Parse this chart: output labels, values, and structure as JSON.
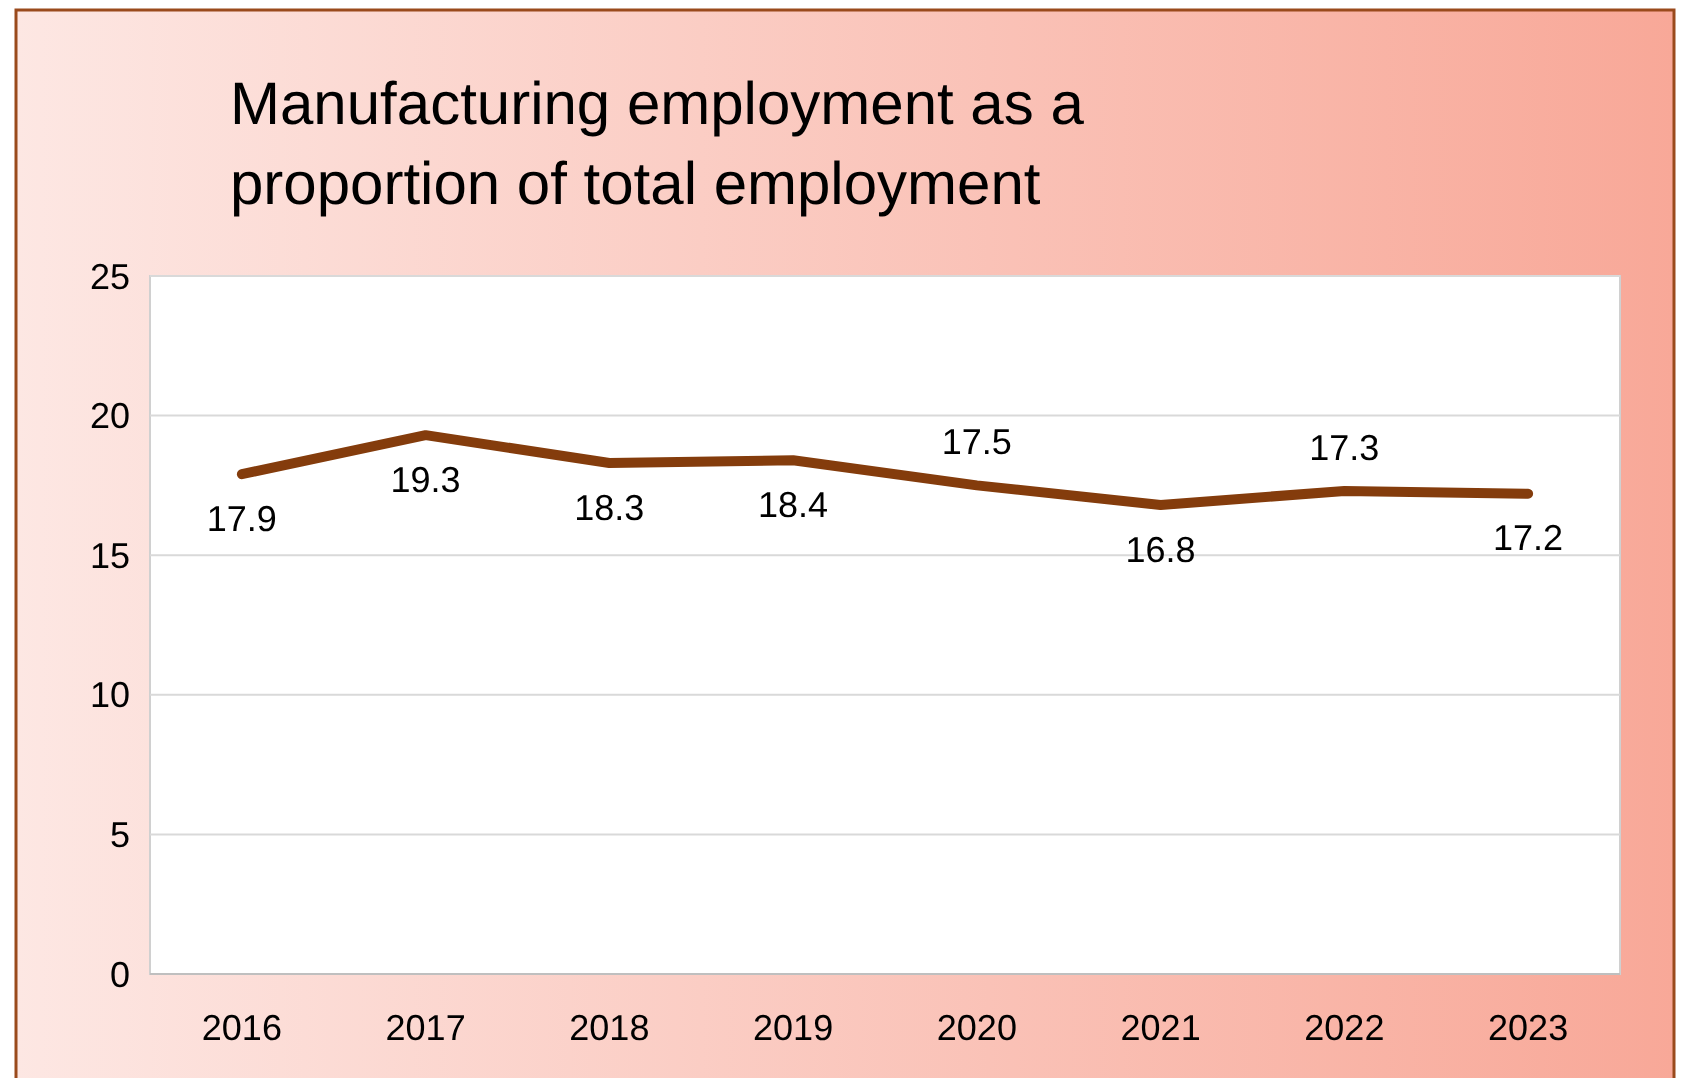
{
  "chart_data": {
    "type": "line",
    "title": "Manufacturing employment as a proportion of total employment",
    "categories": [
      "2016",
      "2017",
      "2018",
      "2019",
      "2020",
      "2021",
      "2022",
      "2023"
    ],
    "series": [
      {
        "color": "#843c0c",
        "values": [
          17.9,
          19.3,
          18.3,
          18.4,
          17.5,
          16.8,
          17.3,
          17.2
        ]
      }
    ],
    "ylim": [
      0,
      25
    ],
    "yticks": [
      0,
      5,
      10,
      15,
      20,
      25
    ],
    "grid": "y",
    "marker": "none",
    "line_style": "solid",
    "data_labels": true
  }
}
